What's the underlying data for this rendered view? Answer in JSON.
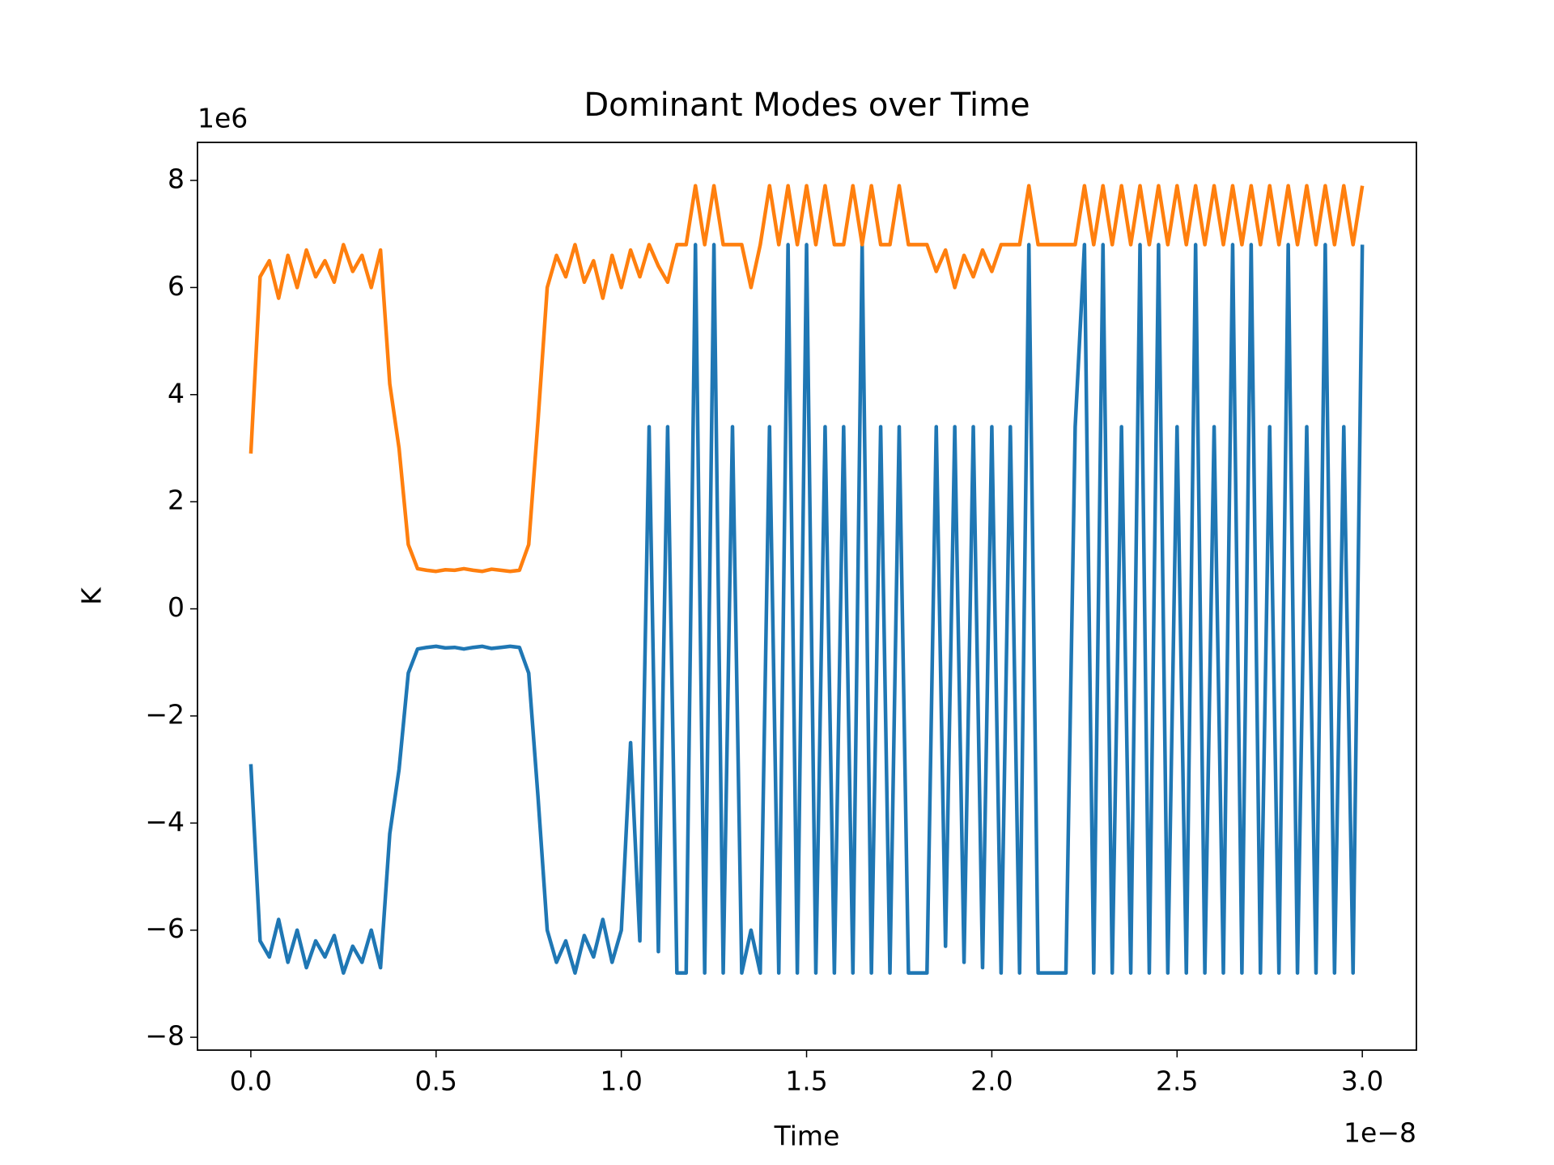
{
  "chart_data": {
    "type": "line",
    "title": "Dominant Modes over Time",
    "x_label": "Time",
    "y_label": "K",
    "x_offset_label": "1e−8",
    "y_offset_label": "1e6",
    "x": [
      0,
      0.025,
      0.05,
      0.075,
      0.1,
      0.125,
      0.15,
      0.175,
      0.2,
      0.225,
      0.25,
      0.275,
      0.3,
      0.325,
      0.35,
      0.375,
      0.4,
      0.425,
      0.45,
      0.475,
      0.5,
      0.525,
      0.55,
      0.575,
      0.6,
      0.625,
      0.65,
      0.675,
      0.7,
      0.725,
      0.75,
      0.775,
      0.8,
      0.825,
      0.85,
      0.875,
      0.9,
      0.925,
      0.95,
      0.975,
      1.0,
      1.025,
      1.05,
      1.075,
      1.1,
      1.125,
      1.15,
      1.175,
      1.2,
      1.225,
      1.25,
      1.275,
      1.3,
      1.325,
      1.35,
      1.375,
      1.4,
      1.425,
      1.45,
      1.475,
      1.5,
      1.525,
      1.55,
      1.575,
      1.6,
      1.625,
      1.65,
      1.675,
      1.7,
      1.725,
      1.75,
      1.775,
      1.8,
      1.825,
      1.85,
      1.875,
      1.9,
      1.925,
      1.95,
      1.975,
      2.0,
      2.025,
      2.05,
      2.075,
      2.1,
      2.125,
      2.15,
      2.175,
      2.2,
      2.225,
      2.25,
      2.275,
      2.3,
      2.325,
      2.35,
      2.375,
      2.4,
      2.425,
      2.45,
      2.475,
      2.5,
      2.525,
      2.55,
      2.575,
      2.6,
      2.625,
      2.65,
      2.675,
      2.7,
      2.725,
      2.75,
      2.775,
      2.8,
      2.825,
      2.85,
      2.875,
      2.9,
      2.925,
      2.95,
      2.975,
      3.0
    ],
    "series": [
      {
        "color": "#1f77b4",
        "values": [
          -2.9,
          -6.2,
          -6.5,
          -5.8,
          -6.6,
          -6.0,
          -6.7,
          -6.2,
          -6.5,
          -6.1,
          -6.8,
          -6.3,
          -6.6,
          -6.0,
          -6.7,
          -4.2,
          -3.0,
          -1.2,
          -0.75,
          -0.72,
          -0.7,
          -0.73,
          -0.72,
          -0.75,
          -0.72,
          -0.7,
          -0.74,
          -0.72,
          -0.7,
          -0.72,
          -1.2,
          -3.5,
          -6.0,
          -6.6,
          -6.2,
          -6.8,
          -6.1,
          -6.5,
          -5.8,
          -6.6,
          -6.0,
          -2.5,
          -6.2,
          3.4,
          -6.4,
          3.4,
          -6.8,
          -6.8,
          6.8,
          -6.8,
          6.8,
          -6.8,
          3.4,
          -6.8,
          -6.0,
          -6.8,
          3.4,
          -6.8,
          6.8,
          -6.8,
          6.8,
          -6.8,
          3.4,
          -6.8,
          3.4,
          -6.8,
          6.8,
          -6.8,
          3.4,
          -6.8,
          3.4,
          -6.8,
          -6.8,
          -6.8,
          3.4,
          -6.3,
          3.4,
          -6.6,
          3.4,
          -6.7,
          3.4,
          -6.8,
          3.4,
          -6.8,
          6.8,
          -6.8,
          -6.8,
          -6.8,
          -6.8,
          3.4,
          6.8,
          -6.8,
          6.8,
          -6.8,
          3.4,
          -6.8,
          6.8,
          -6.8,
          6.8,
          -6.8,
          3.4,
          -6.8,
          6.8,
          -6.8,
          3.4,
          -6.8,
          6.8,
          -6.8,
          6.8,
          -6.8,
          3.4,
          -6.8,
          6.8,
          -6.8,
          3.4,
          -6.8,
          6.8,
          -6.8,
          3.4,
          -6.8,
          6.8
        ]
      },
      {
        "color": "#ff7f0e",
        "values": [
          2.9,
          6.2,
          6.5,
          5.8,
          6.6,
          6.0,
          6.7,
          6.2,
          6.5,
          6.1,
          6.8,
          6.3,
          6.6,
          6.0,
          6.7,
          4.2,
          3.0,
          1.2,
          0.75,
          0.72,
          0.7,
          0.73,
          0.72,
          0.75,
          0.72,
          0.7,
          0.74,
          0.72,
          0.7,
          0.72,
          1.2,
          3.5,
          6.0,
          6.6,
          6.2,
          6.8,
          6.1,
          6.5,
          5.8,
          6.6,
          6.0,
          6.7,
          6.2,
          6.8,
          6.4,
          6.1,
          6.8,
          6.8,
          7.9,
          6.8,
          7.9,
          6.8,
          6.8,
          6.8,
          6.0,
          6.8,
          7.9,
          6.8,
          7.9,
          6.8,
          7.9,
          6.8,
          7.9,
          6.8,
          6.8,
          7.9,
          6.8,
          7.9,
          6.8,
          6.8,
          7.9,
          6.8,
          6.8,
          6.8,
          6.3,
          6.7,
          6.0,
          6.6,
          6.2,
          6.7,
          6.3,
          6.8,
          6.8,
          6.8,
          7.9,
          6.8,
          6.8,
          6.8,
          6.8,
          6.8,
          7.9,
          6.8,
          7.9,
          6.8,
          7.9,
          6.8,
          7.9,
          6.8,
          7.9,
          6.8,
          7.9,
          6.8,
          7.9,
          6.8,
          7.9,
          6.8,
          7.9,
          6.8,
          7.9,
          6.8,
          7.9,
          6.8,
          7.9,
          6.8,
          7.9,
          6.8,
          7.9,
          6.8,
          7.9,
          6.8,
          7.9
        ]
      }
    ],
    "xlim": [
      -0.144,
      3.146
    ],
    "ylim": [
      -8.24,
      8.71
    ],
    "xticks": [
      {
        "value": 0,
        "label": "0.0"
      },
      {
        "value": 0.5,
        "label": "0.5"
      },
      {
        "value": 1,
        "label": "1.0"
      },
      {
        "value": 1.5,
        "label": "1.5"
      },
      {
        "value": 2,
        "label": "2.0"
      },
      {
        "value": 2.5,
        "label": "2.5"
      },
      {
        "value": 3,
        "label": "3.0"
      }
    ],
    "yticks": [
      {
        "value": -8,
        "label": "−8"
      },
      {
        "value": -6,
        "label": "−6"
      },
      {
        "value": -4,
        "label": "−4"
      },
      {
        "value": -2,
        "label": "−2"
      },
      0,
      2,
      4,
      6,
      8
    ],
    "grid": false
  }
}
